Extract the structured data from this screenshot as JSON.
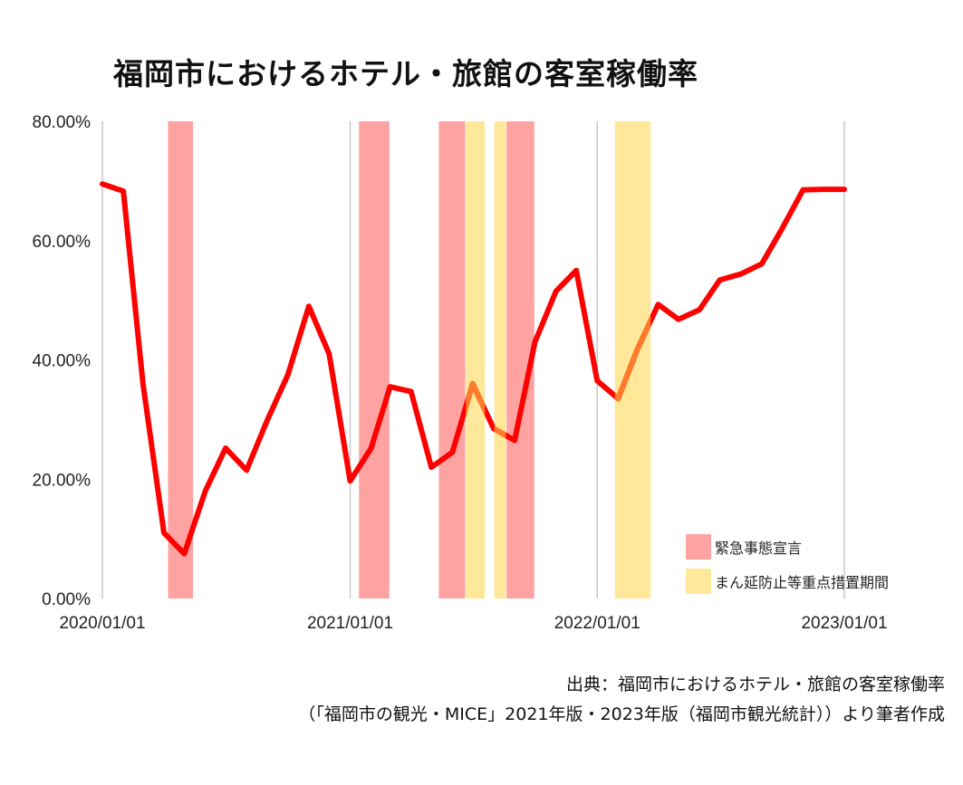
{
  "chart_data": {
    "type": "line",
    "title": "福岡市におけるホテル・旅館の客室稼働率",
    "xlabel": "",
    "ylabel": "",
    "ylim": [
      0,
      80
    ],
    "xlim": [
      "2020/01/01",
      "2023/01/01"
    ],
    "y_ticks": [
      "0.00%",
      "20.00%",
      "40.00%",
      "60.00%",
      "80.00%"
    ],
    "x_ticks": [
      "2020/01/01",
      "2021/01/01",
      "2022/01/01",
      "2023/01/01"
    ],
    "grid": "vertical",
    "legend_position": "bottom-right",
    "series": [
      {
        "color": "#ff0000",
        "x": [
          "2020/01/01",
          "2020/02/01",
          "2020/03/01",
          "2020/04/01",
          "2020/05/01",
          "2020/06/01",
          "2020/07/01",
          "2020/08/01",
          "2020/09/01",
          "2020/10/01",
          "2020/11/01",
          "2020/12/01",
          "2021/01/01",
          "2021/02/01",
          "2021/03/01",
          "2021/04/01",
          "2021/05/01",
          "2021/06/01",
          "2021/07/01",
          "2021/08/01",
          "2021/09/01",
          "2021/10/01",
          "2021/11/01",
          "2021/12/01",
          "2022/01/01",
          "2022/02/01",
          "2022/03/01",
          "2022/04/01",
          "2022/05/01",
          "2022/06/01",
          "2022/07/01",
          "2022/08/01",
          "2022/09/01",
          "2022/10/01",
          "2022/11/01",
          "2022/12/01",
          "2023/01/01"
        ],
        "values": [
          69.5,
          68.3,
          36.0,
          11.0,
          7.5,
          18.0,
          25.2,
          21.5,
          30.0,
          37.5,
          49.0,
          41.0,
          19.7,
          25.2,
          35.5,
          34.7,
          22.0,
          24.5,
          36.0,
          28.5,
          26.5,
          43.0,
          51.5,
          55.0,
          36.5,
          33.5,
          41.7,
          49.3,
          46.8,
          48.4,
          53.4,
          54.4,
          56.1,
          62.0,
          68.5,
          68.6,
          68.6
        ]
      }
    ],
    "shaded_periods": [
      {
        "type": "緊急事態宣言",
        "start": "2020/04/07",
        "end": "2020/05/14"
      },
      {
        "type": "緊急事態宣言",
        "start": "2021/01/14",
        "end": "2021/02/28"
      },
      {
        "type": "緊急事態宣言",
        "start": "2021/05/12",
        "end": "2021/06/20"
      },
      {
        "type": "まん延防止等重点措置期間",
        "start": "2021/06/21",
        "end": "2021/07/19"
      },
      {
        "type": "まん延防止等重点措置期間",
        "start": "2021/08/02",
        "end": "2021/08/19"
      },
      {
        "type": "緊急事態宣言",
        "start": "2021/08/20",
        "end": "2021/09/30"
      },
      {
        "type": "まん延防止等重点措置期間",
        "start": "2022/01/27",
        "end": "2022/03/21"
      }
    ],
    "legend": [
      {
        "label": "緊急事態宣言",
        "color": "#ffa2a2"
      },
      {
        "label": "まん延防止等重点措置期間",
        "color": "#ffe89a"
      }
    ],
    "band_colors": {
      "緊急事態宣言": "#ffa2a2",
      "まん延防止等重点措置期間": "#ffe89a"
    },
    "overlap_line_color": "#ff7a2a"
  },
  "source": {
    "line1": "出典：福岡市におけるホテル・旅館の客室稼働率",
    "line2": "（「福岡市の観光・MICE」2021年版・2023年版（福岡市観光統計））より筆者作成"
  }
}
